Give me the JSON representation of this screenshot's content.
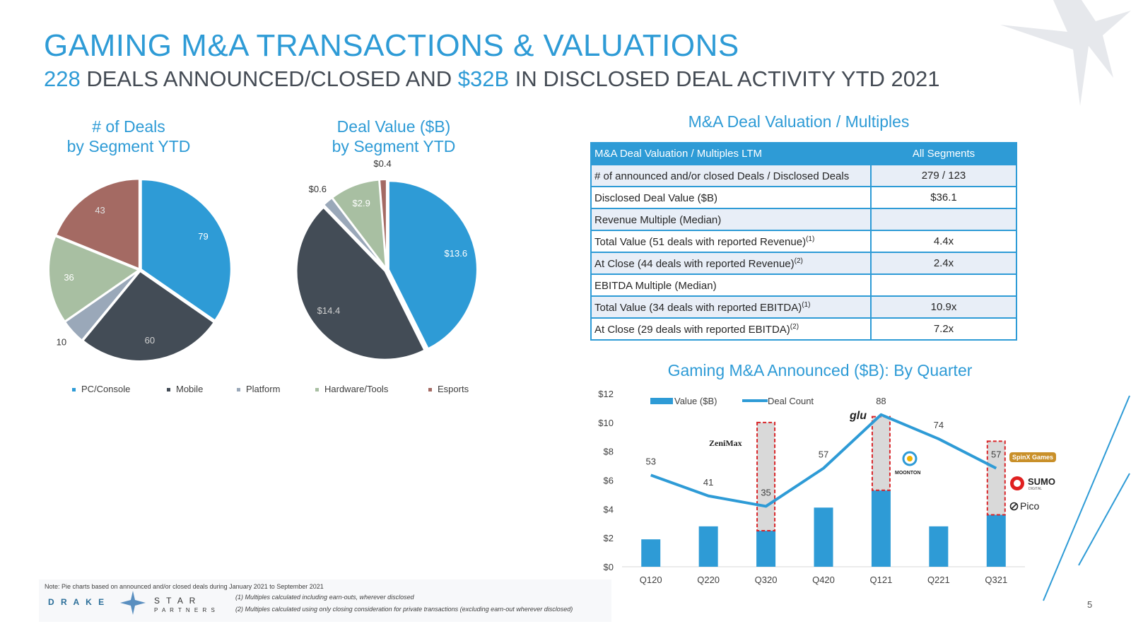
{
  "header": {
    "title": "GAMING M&A TRANSACTIONS & VALUATIONS",
    "subtitle_num1": "228",
    "subtitle_mid": " DEALS ANNOUNCED/CLOSED AND ",
    "subtitle_num2": "$32B",
    "subtitle_end": " IN DISCLOSED DEAL ACTIVITY YTD 2021"
  },
  "pie_deals_title": [
    "# of Deals",
    "by Segment YTD"
  ],
  "pie_value_title": [
    "Deal Value ($B)",
    "by Segment YTD"
  ],
  "legend": [
    {
      "label": "PC/Console",
      "color": "#2e9bd6"
    },
    {
      "label": "Mobile",
      "color": "#434c56"
    },
    {
      "label": "Platform",
      "color": "#9aa8b9"
    },
    {
      "label": "Hardware/Tools",
      "color": "#a8bfa2"
    },
    {
      "label": "Esports",
      "color": "#a46a63"
    }
  ],
  "table": {
    "title": "M&A Deal Valuation / Multiples",
    "header": [
      "M&A Deal Valuation / Multiples LTM",
      "All Segments"
    ],
    "rows": [
      {
        "label": "# of announced and/or closed Deals / Disclosed Deals",
        "sup": "",
        "value": "279 / 123"
      },
      {
        "label": "Disclosed Deal Value ($B)",
        "sup": "",
        "value": "$36.1"
      },
      {
        "label": "Revenue Multiple (Median)",
        "sup": "",
        "value": ""
      },
      {
        "label": "Total Value (51 deals with reported Revenue)",
        "sup": "(1)",
        "value": "4.4x"
      },
      {
        "label": "At Close (44 deals with reported Revenue)",
        "sup": "(2)",
        "value": "2.4x"
      },
      {
        "label": "EBITDA Multiple (Median)",
        "sup": "",
        "value": ""
      },
      {
        "label": "Total Value (34 deals with reported EBITDA)",
        "sup": "(1)",
        "value": "10.9x"
      },
      {
        "label": "At Close (29 deals with reported EBITDA)",
        "sup": "(2)",
        "value": "7.2x"
      }
    ]
  },
  "quarter_chart_title": "Gaming M&A Announced ($B): By Quarter",
  "logos": [
    "ZeniMax",
    "glu",
    "MOONTON",
    "SpinX Games",
    "SUMO",
    "DIGITAL",
    "Pico"
  ],
  "chart_data": [
    {
      "type": "pie",
      "categories": [
        "PC/Console",
        "Mobile",
        "Platform",
        "Hardware/Tools",
        "Esports"
      ],
      "values": [
        79,
        60,
        10,
        36,
        43
      ],
      "labels": [
        "79",
        "60",
        "10",
        "36",
        "43"
      ],
      "colors": [
        "#2e9bd6",
        "#434c56",
        "#9aa8b9",
        "#a8bfa2",
        "#a46a63"
      ]
    },
    {
      "type": "pie",
      "categories": [
        "PC/Console",
        "Mobile",
        "Platform",
        "Hardware/Tools",
        "Esports"
      ],
      "values": [
        13.6,
        14.4,
        0.6,
        2.9,
        0.4
      ],
      "labels": [
        "$13.6",
        "$14.4",
        "$0.6",
        "$2.9",
        "$0.4"
      ],
      "colors": [
        "#2e9bd6",
        "#434c56",
        "#9aa8b9",
        "#a8bfa2",
        "#a46a63"
      ]
    },
    {
      "type": "bar",
      "categories": [
        "Q120",
        "Q220",
        "Q320",
        "Q420",
        "Q121",
        "Q221",
        "Q321"
      ],
      "series": [
        {
          "name": "Value ($B)",
          "type": "bar",
          "values": [
            1.9,
            2.8,
            2.5,
            4.1,
            5.3,
            2.8,
            3.6
          ]
        },
        {
          "name": "Value ($B)",
          "type": "bar-highlight",
          "values": [
            0,
            0,
            7.5,
            0,
            5.1,
            0,
            5.1
          ]
        },
        {
          "name": "Deal Count",
          "type": "line",
          "values": [
            53,
            41,
            35,
            57,
            88,
            74,
            57
          ]
        }
      ],
      "yticks": [
        "$0",
        "$2",
        "$4",
        "$6",
        "$8",
        "$10",
        "$12"
      ],
      "ylim": [
        0,
        12
      ],
      "colors": {
        "bar": "#2e9bd6",
        "line": "#2e9bd6",
        "highlight": "#d9d9d9",
        "highlight_border": "#d9262a"
      }
    }
  ],
  "notes": {
    "pie_note": "Note: Pie charts based on announced and/or closed deals during January 2021 to September 2021",
    "foot1": "(1) Multiples calculated including earn-outs, wherever disclosed",
    "foot2": "(2) Multiples calculated using only closing consideration for private transactions (excluding earn-out wherever disclosed)"
  },
  "brand": {
    "line1": "D R A K E",
    "line2": "S T A R",
    "line3": "P A R T N E R S"
  },
  "page_number": "5"
}
